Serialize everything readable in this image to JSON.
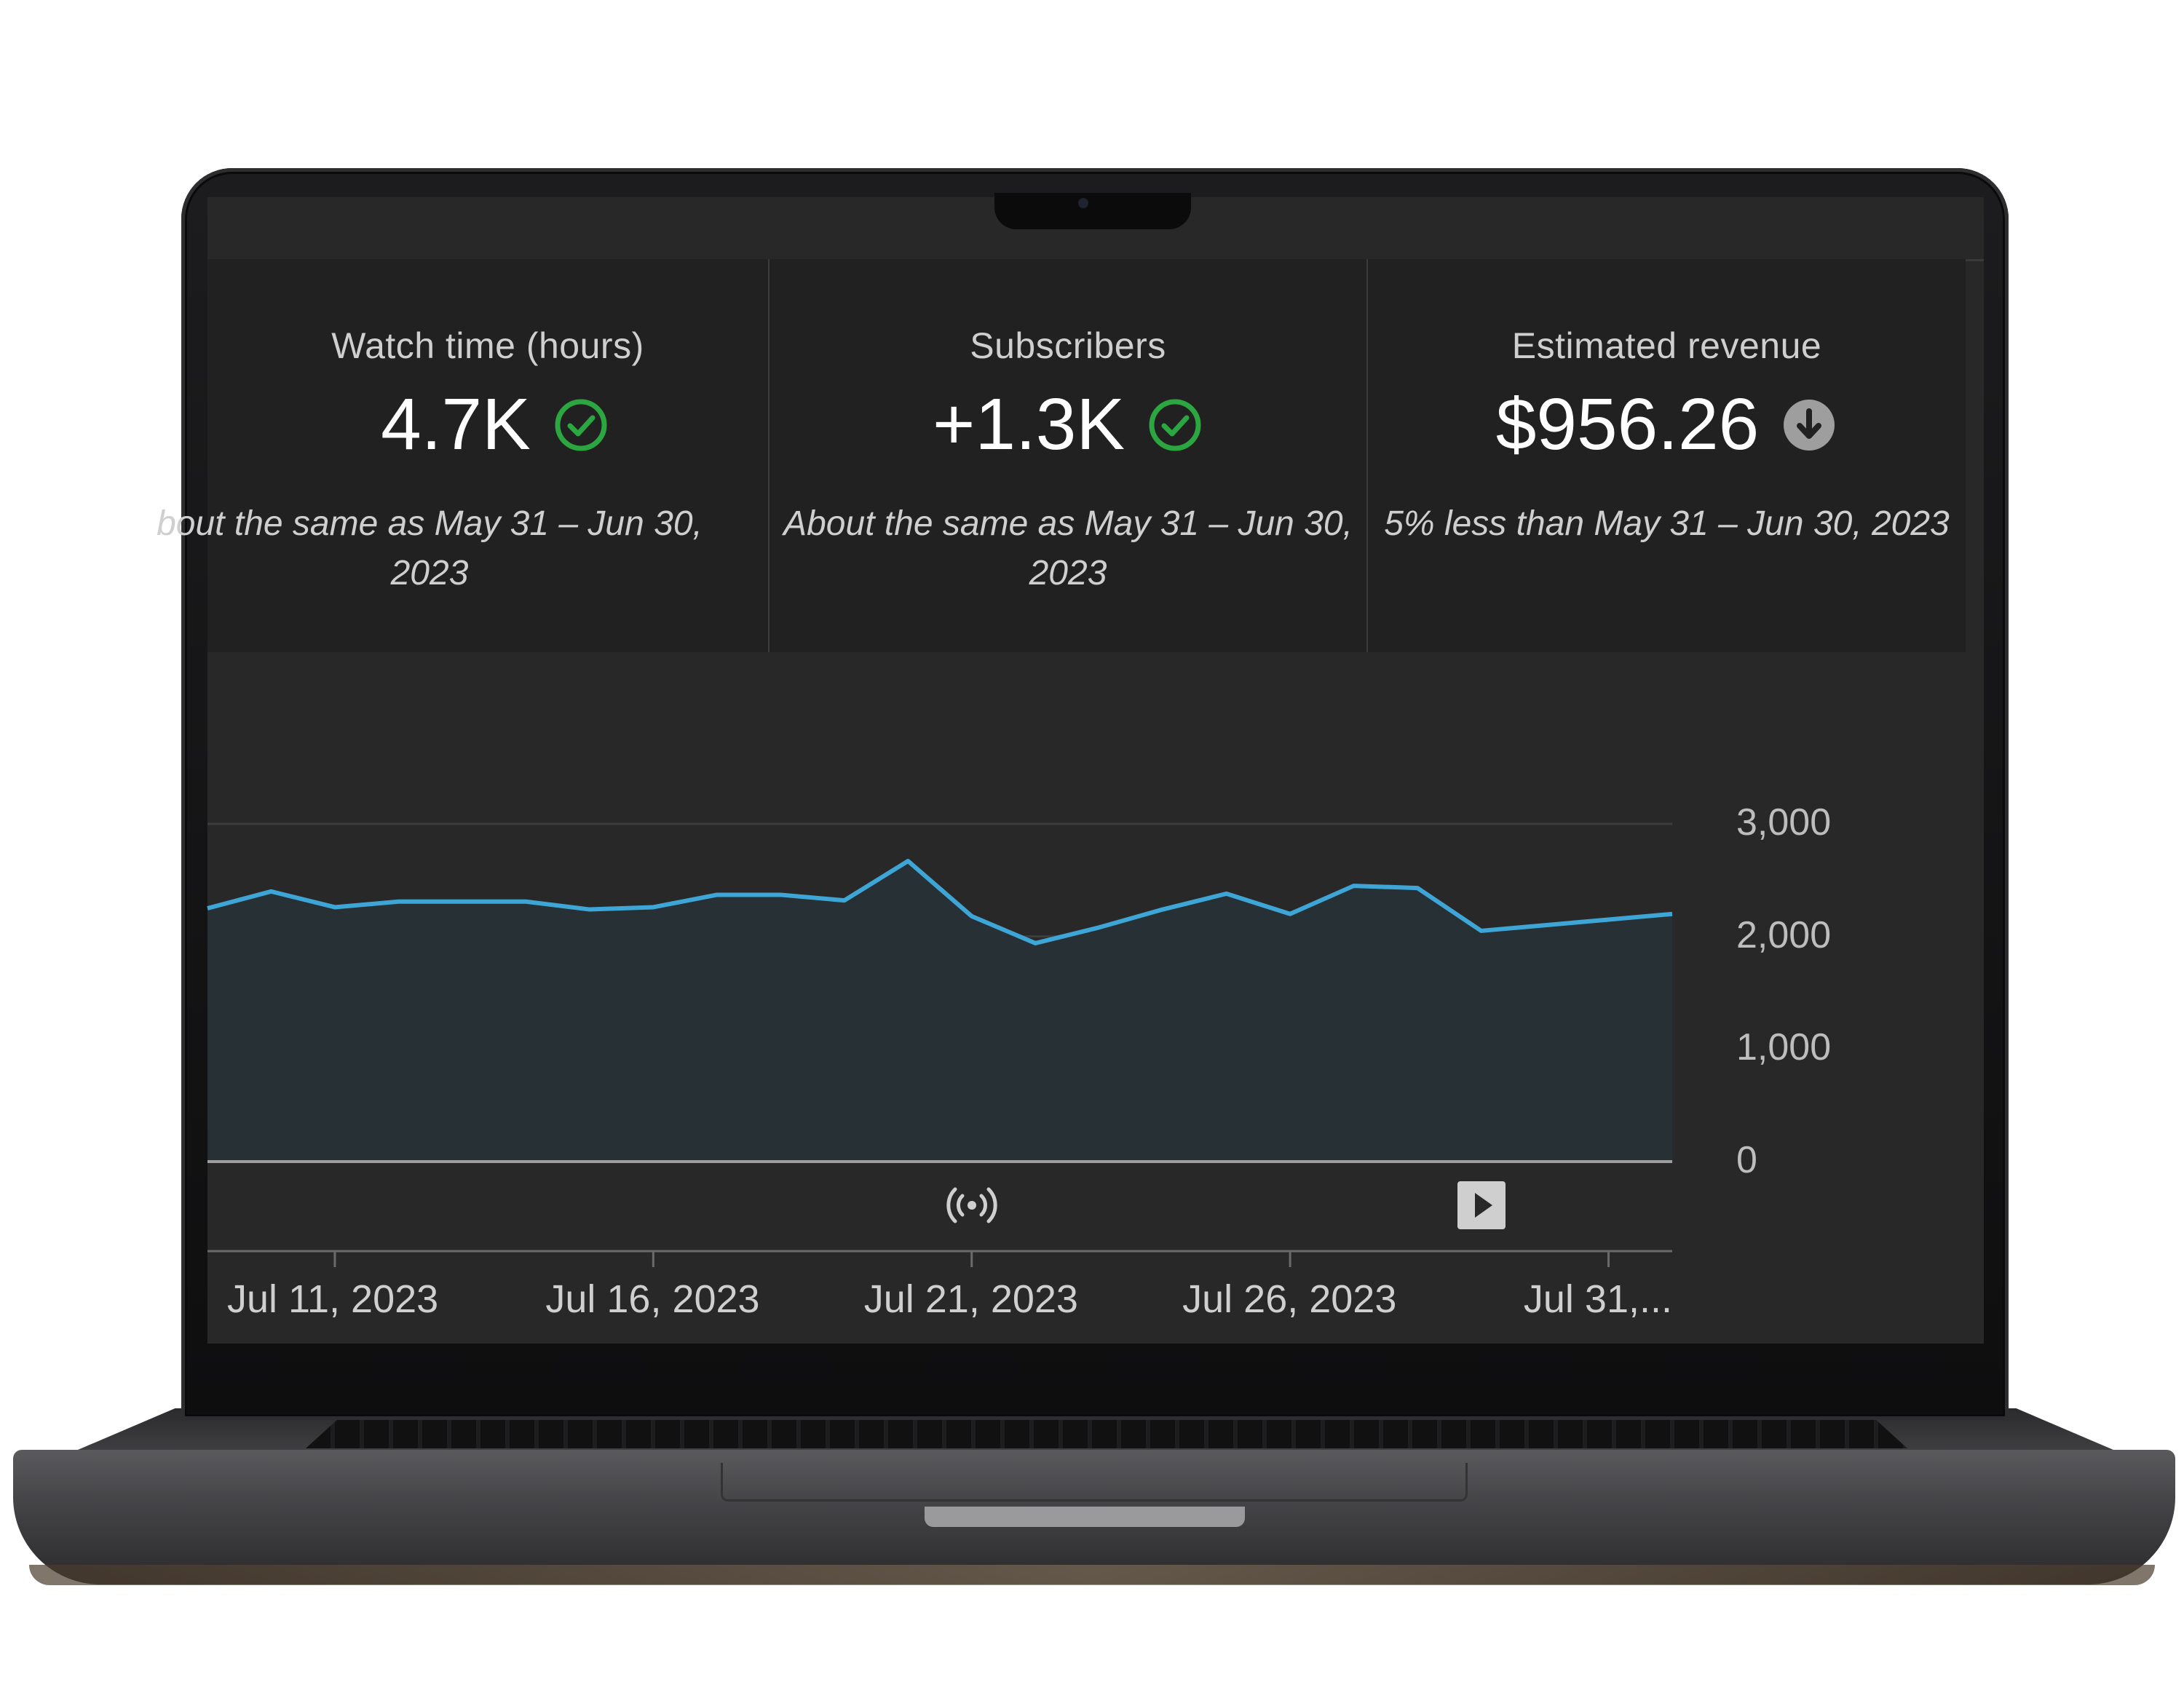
{
  "metrics": [
    {
      "label": "Watch time (hours)",
      "value": "4.7K",
      "status": "check-icon",
      "compare": "bout the same as May 31 – Jun 30,\n2023"
    },
    {
      "label": "Subscribers",
      "value": "+1.3K",
      "status": "check-icon",
      "compare": "About the same as May 31 – Jun 30,\n2023"
    },
    {
      "label": "Estimated revenue",
      "value": "$956.26",
      "status": "arrow-down-icon",
      "compare": "5% less than May 31 – Jun 30, 2023"
    }
  ],
  "colors": {
    "line": "#3ea6d6",
    "fill": "#263035",
    "check": "#2ba640",
    "down": "#9e9e9e"
  },
  "chart_data": {
    "type": "area",
    "ylim": [
      0,
      3000
    ],
    "yticks": [
      "3,000",
      "2,000",
      "1,000",
      "0"
    ],
    "xticks": [
      "Jul 11, 2023",
      "Jul 16, 2023",
      "Jul 21, 2023",
      "Jul 26, 2023",
      "Jul 31,..."
    ],
    "x": [
      "Jul 9",
      "Jul 10",
      "Jul 11",
      "Jul 12",
      "Jul 13",
      "Jul 14",
      "Jul 15",
      "Jul 16",
      "Jul 17",
      "Jul 18",
      "Jul 19",
      "Jul 20",
      "Jul 21",
      "Jul 22",
      "Jul 23",
      "Jul 24",
      "Jul 25",
      "Jul 26",
      "Jul 27",
      "Jul 28",
      "Jul 29",
      "Jul 30",
      "Jul 31",
      "Aug 1"
    ],
    "values": [
      2250,
      2400,
      2260,
      2310,
      2310,
      2310,
      2240,
      2260,
      2370,
      2370,
      2320,
      2670,
      2180,
      1940,
      2080,
      2240,
      2380,
      2200,
      2450,
      2430,
      2050,
      2100,
      2150,
      2200
    ],
    "markers": [
      {
        "x": "Jul 21",
        "icon": "live-stream-icon"
      },
      {
        "x": "Jul 29",
        "icon": "video-play-icon"
      }
    ]
  }
}
